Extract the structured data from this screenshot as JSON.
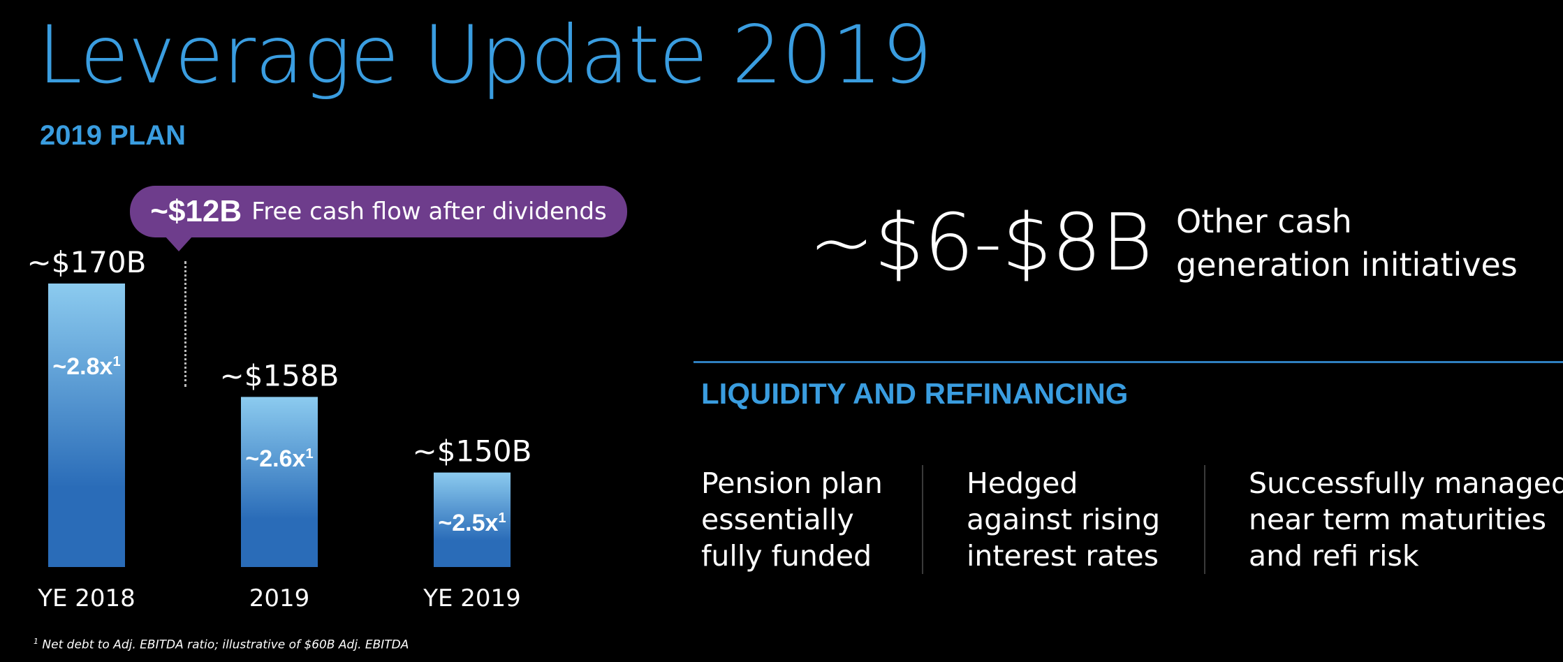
{
  "header": {
    "title": "Leverage Update 2019",
    "subtitle": "2019 PLAN"
  },
  "callout": {
    "amount": "~$12B",
    "text": "Free cash flow after dividends",
    "color": "#6e3d8c"
  },
  "chart_data": {
    "type": "bar",
    "categories": [
      "YE 2018",
      "2019",
      "YE 2019"
    ],
    "values": [
      170,
      158,
      150
    ],
    "value_labels": [
      "~$170B",
      "~$158B",
      "~$150B"
    ],
    "ratio_labels": [
      "~2.8x",
      "~2.6x",
      "~2.5x"
    ],
    "ratio_superscript": "1",
    "unit": "$B",
    "bar_color_top": "#8ccbef",
    "bar_color_bottom": "#2a6cb8",
    "grid": false
  },
  "other_cash": {
    "amount": "~$6-$8B",
    "lines": [
      "Other cash",
      "generation initiatives"
    ]
  },
  "liquidity": {
    "heading": "LIQUIDITY AND REFINANCING",
    "rule_color": "#2f7fbf",
    "columns": [
      {
        "lines": [
          "Pension plan",
          "essentially",
          "fully funded"
        ]
      },
      {
        "lines": [
          "Hedged",
          "against rising",
          "interest rates"
        ]
      },
      {
        "lines": [
          "Successfully managed",
          "near term maturities",
          "and refi risk"
        ]
      }
    ]
  },
  "footnote": {
    "marker": "1",
    "text": "Net debt to Adj. EBITDA ratio; illustrative of  $60B  Adj. EBITDA"
  },
  "accent_color": "#3a9de0"
}
